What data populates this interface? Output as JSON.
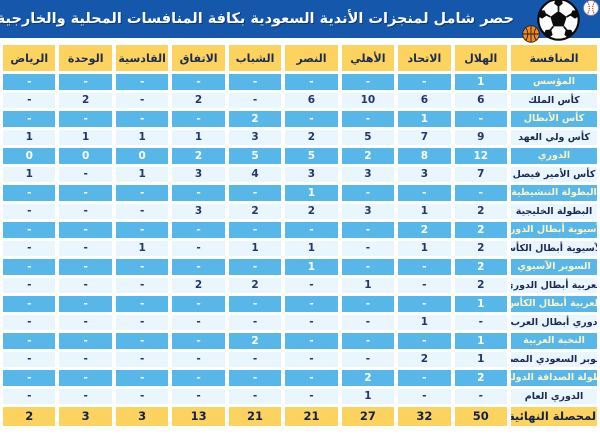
{
  "banner": {
    "title": "حصر شامل لمنجزات الأندية السعودية بكافة المنافسات المحلية والخارجية الرسمية",
    "bg_color": "#1557ab",
    "icons": [
      "soccer-ball-icon",
      "baseball-icon",
      "basketball-icon"
    ]
  },
  "colors": {
    "header_yellow": "#fcd35f",
    "row_blue": "#57b7e8",
    "row_light": "#eaf6fd",
    "text_navy": "#1b2b55",
    "label_on_blue": "#fdf3c0",
    "banner_blue": "#1557ab"
  },
  "chart_data": {
    "type": "table",
    "title": "حصر شامل لمنجزات الأندية السعودية بكافة المنافسات المحلية والخارجية الرسمية",
    "columns": [
      "المنافسة",
      "الهلال",
      "الاتحاد",
      "الأهلي",
      "النصر",
      "الشباب",
      "الاتفاق",
      "القادسية",
      "الوحدة",
      "الرياض"
    ],
    "rows": [
      {
        "name": "المؤسس",
        "values": [
          "1",
          "-",
          "-",
          "-",
          "-",
          "-",
          "-",
          "-",
          "-"
        ]
      },
      {
        "name": "كأس الملك",
        "values": [
          "6",
          "6",
          "10",
          "6",
          "-",
          "2",
          "-",
          "2",
          "-"
        ]
      },
      {
        "name": "كأس الأبطال",
        "values": [
          "-",
          "1",
          "-",
          "-",
          "2",
          "-",
          "-",
          "-",
          "-"
        ]
      },
      {
        "name": "كأس ولي العهد",
        "values": [
          "9",
          "7",
          "5",
          "2",
          "3",
          "1",
          "1",
          "1",
          "1"
        ]
      },
      {
        "name": "الدوري",
        "values": [
          "12",
          "8",
          "2",
          "5",
          "5",
          "2",
          "0",
          "0",
          "0"
        ]
      },
      {
        "name": "كأس الأمير فيصل",
        "values": [
          "7",
          "3",
          "3",
          "3",
          "4",
          "3",
          "1",
          "-",
          "1"
        ]
      },
      {
        "name": "البطولة التنشيطية",
        "values": [
          "-",
          "-",
          "-",
          "1",
          "-",
          "-",
          "-",
          "-",
          "-"
        ]
      },
      {
        "name": "البطولة الخليجية",
        "values": [
          "2",
          "1",
          "3",
          "2",
          "2",
          "3",
          "-",
          "-",
          "-"
        ]
      },
      {
        "name": "الآسيوية أبطال الدوري",
        "values": [
          "2",
          "2",
          "-",
          "-",
          "-",
          "-",
          "-",
          "-",
          "-"
        ]
      },
      {
        "name": "الآسيوية أبطال الكأس",
        "values": [
          "2",
          "1",
          "-",
          "1",
          "1",
          "-",
          "1",
          "-",
          "-"
        ]
      },
      {
        "name": "السوبر الآسيوي",
        "values": [
          "2",
          "-",
          "-",
          "1",
          "-",
          "-",
          "-",
          "-",
          "-"
        ]
      },
      {
        "name": "العربية أبطال الدوري",
        "values": [
          "2",
          "-",
          "1",
          "-",
          "2",
          "2",
          "-",
          "-",
          "-"
        ]
      },
      {
        "name": "العربية أبطال الكأس",
        "values": [
          "1",
          "-",
          "-",
          "-",
          "-",
          "-",
          "-",
          "-",
          "-"
        ]
      },
      {
        "name": "دوري أبطال العرب",
        "values": [
          "-",
          "1",
          "-",
          "-",
          "-",
          "-",
          "-",
          "-",
          "-"
        ]
      },
      {
        "name": "النخبة العربية",
        "values": [
          "1",
          "-",
          "-",
          "-",
          "2",
          "-",
          "-",
          "-",
          "-"
        ]
      },
      {
        "name": "السوبر السعودي المصري",
        "values": [
          "1",
          "2",
          "-",
          "-",
          "-",
          "-",
          "-",
          "-",
          "-"
        ]
      },
      {
        "name": "بطولة الصداقة الدولية",
        "values": [
          "2",
          "-",
          "2",
          "-",
          "-",
          "-",
          "-",
          "-",
          "-"
        ]
      },
      {
        "name": "الدوري العام",
        "values": [
          "-",
          "-",
          "1",
          "-",
          "-",
          "-",
          "-",
          "-",
          "-"
        ]
      }
    ],
    "total": {
      "name": "المحصلة النهائية",
      "values": [
        "50",
        "32",
        "27",
        "21",
        "21",
        "13",
        "3",
        "3",
        "2"
      ]
    },
    "layout": {
      "direction": "rtl",
      "zebra": "odd-rows-blue",
      "header_row": "yellow",
      "total_row": "yellow"
    }
  }
}
